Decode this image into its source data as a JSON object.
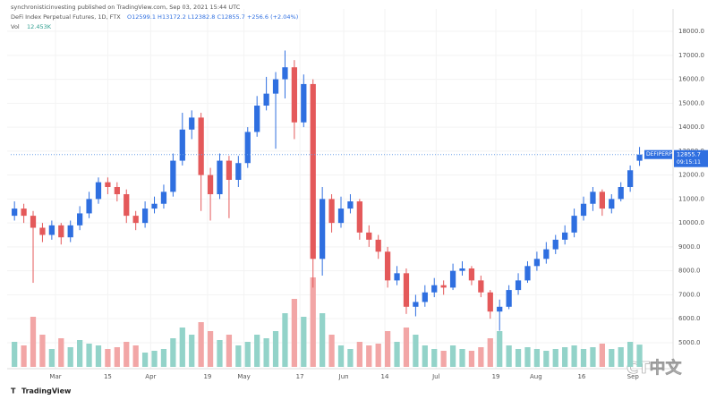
{
  "header": {
    "published": "synchronisticinvesting published on TradingView.com, Sep 03, 2021 15:44 UTC",
    "symbol": "DeFi Index Perpetual Futures, 1D, FTX",
    "ohlc": "O12599.1 H13172.2 L12382.8 C12855.7 +256.6 (+2.04%)",
    "volume_label": "Vol",
    "volume_value": "12.453K",
    "logo": "TradingView",
    "watermark": "CT中文"
  },
  "chart_data": {
    "type": "candlestick",
    "ticker": "DEFIPERP",
    "last_price": 12855.7,
    "countdown": "09:15:11",
    "up_color": "#2f6fe0",
    "down_color": "#e4595a",
    "volume_up_color": "#93d3c9",
    "volume_down_color": "#f2a6a6",
    "grid": true,
    "xlim": [
      -0.4,
      70.4
    ],
    "ylim": [
      4400,
      18600
    ],
    "xticks": [
      {
        "value": 4.4,
        "label": "Mar"
      },
      {
        "value": 10.0,
        "label": "15"
      },
      {
        "value": 14.6,
        "label": "Apr"
      },
      {
        "value": 20.7,
        "label": "19"
      },
      {
        "value": 24.6,
        "label": "May"
      },
      {
        "value": 30.6,
        "label": "17"
      },
      {
        "value": 35.3,
        "label": "Jun"
      },
      {
        "value": 39.7,
        "label": "14"
      },
      {
        "value": 45.2,
        "label": "Jul"
      },
      {
        "value": 51.6,
        "label": "19"
      },
      {
        "value": 55.9,
        "label": "Aug"
      },
      {
        "value": 60.8,
        "label": "16"
      },
      {
        "value": 66.3,
        "label": "Sep"
      }
    ],
    "yticks": [
      {
        "value": 5000,
        "label": "5000.0"
      },
      {
        "value": 6000,
        "label": "6000.0"
      },
      {
        "value": 7000,
        "label": "7000.0"
      },
      {
        "value": 8000,
        "label": "8000.0"
      },
      {
        "value": 9000,
        "label": "9000.0"
      },
      {
        "value": 10000,
        "label": "10000.0"
      },
      {
        "value": 11000,
        "label": "11000.0"
      },
      {
        "value": 12000,
        "label": "12000.0"
      },
      {
        "value": 13000,
        "label": "13000.0"
      },
      {
        "value": 14000,
        "label": "14000.0"
      },
      {
        "value": 15000,
        "label": "15000.0"
      },
      {
        "value": 16000,
        "label": "16000.0"
      },
      {
        "value": 17000,
        "label": "17000.0"
      },
      {
        "value": 18000,
        "label": "18000.0"
      }
    ],
    "open": [
      10300,
      10600,
      10300,
      9800,
      9500,
      9900,
      9400,
      9900,
      10400,
      11000,
      11700,
      11500,
      11200,
      10300,
      10000,
      10600,
      10800,
      11300,
      12600,
      13900,
      14400,
      12000,
      11200,
      12600,
      11800,
      12500,
      13800,
      14900,
      15400,
      16000,
      16500,
      14200,
      15800,
      8500,
      11000,
      10000,
      10600,
      10900,
      9600,
      9300,
      8800,
      7600,
      7900,
      6500,
      6700,
      7100,
      7400,
      7300,
      8000,
      8100,
      7600,
      7100,
      6300,
      6500,
      7200,
      7600,
      8200,
      8500,
      8900,
      9300,
      9600,
      10300,
      10800,
      11300,
      10600,
      11000,
      11500,
      12599.1
    ],
    "high": [
      10900,
      10800,
      10500,
      10000,
      10100,
      10000,
      10100,
      10700,
      11300,
      11900,
      11900,
      11700,
      11400,
      10500,
      10900,
      11100,
      11600,
      12900,
      14600,
      14700,
      14600,
      12300,
      12900,
      12800,
      12800,
      14000,
      15300,
      16100,
      16300,
      17200,
      16800,
      16200,
      16000,
      11500,
      11200,
      11100,
      11200,
      11000,
      9900,
      9500,
      9000,
      8200,
      8100,
      7000,
      7400,
      7700,
      7600,
      8300,
      8400,
      8200,
      7800,
      7200,
      6800,
      7400,
      7900,
      8400,
      8800,
      9200,
      9500,
      9900,
      10600,
      11100,
      11500,
      11400,
      11200,
      11700,
      12400,
      13172.2
    ],
    "low": [
      10100,
      10000,
      7500,
      9200,
      9300,
      9100,
      9200,
      9700,
      10200,
      10800,
      11200,
      10900,
      10000,
      9700,
      9800,
      10400,
      10600,
      11100,
      12400,
      13500,
      10500,
      10100,
      11000,
      10200,
      11500,
      12300,
      13600,
      14700,
      13100,
      15200,
      13500,
      14000,
      7300,
      7800,
      9600,
      9800,
      10400,
      9300,
      9000,
      8500,
      7300,
      7400,
      6200,
      6100,
      6500,
      6900,
      7000,
      7200,
      7800,
      7400,
      6900,
      6000,
      5500,
      6400,
      7000,
      7500,
      8000,
      8300,
      8700,
      9100,
      9400,
      10100,
      10500,
      10300,
      10400,
      10900,
      11300,
      12382.8
    ],
    "close": [
      10600,
      10300,
      9800,
      9500,
      9900,
      9400,
      9900,
      10400,
      11000,
      11700,
      11500,
      11200,
      10300,
      10000,
      10600,
      10800,
      11300,
      12600,
      13900,
      14400,
      12000,
      11200,
      12600,
      11800,
      12500,
      13800,
      14900,
      15400,
      16000,
      16500,
      14200,
      15800,
      8500,
      11000,
      10000,
      10600,
      10900,
      9600,
      9300,
      8800,
      7600,
      7900,
      6500,
      6700,
      7100,
      7400,
      7300,
      8000,
      8100,
      7600,
      7100,
      6300,
      6500,
      7200,
      7600,
      8200,
      8500,
      8900,
      9300,
      9600,
      10300,
      10800,
      11300,
      10600,
      11000,
      11500,
      12200,
      12855.7
    ],
    "volume": [
      14,
      12,
      28,
      18,
      10,
      16,
      11,
      15,
      13,
      12,
      10,
      11,
      14,
      12,
      8,
      9,
      10,
      16,
      22,
      18,
      25,
      20,
      15,
      18,
      12,
      14,
      18,
      16,
      20,
      30,
      38,
      28,
      50,
      30,
      18,
      12,
      10,
      14,
      12,
      13,
      20,
      14,
      22,
      18,
      12,
      10,
      9,
      12,
      10,
      9,
      11,
      16,
      20,
      12,
      10,
      11,
      10,
      9,
      10,
      11,
      12,
      10,
      11,
      13,
      10,
      11,
      14,
      12.453
    ]
  }
}
